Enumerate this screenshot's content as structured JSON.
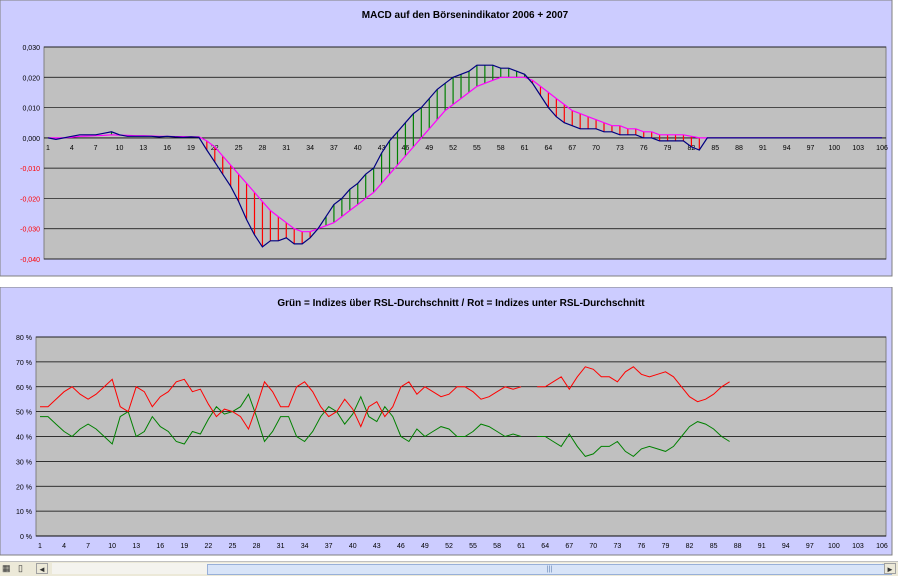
{
  "chart_data": [
    {
      "type": "line",
      "title": "MACD auf den Börsenindikator 2006 + 2007",
      "ylim": [
        -0.04,
        0.03
      ],
      "yticks": [
        "0,030",
        "0,020",
        "0,010",
        "0,000",
        "-0,010",
        "-0,020",
        "-0,030",
        "-0,040"
      ],
      "ytick_values": [
        0.03,
        0.02,
        0.01,
        0.0,
        -0.01,
        -0.02,
        -0.03,
        -0.04
      ],
      "xticks": [
        "1",
        "4",
        "7",
        "10",
        "13",
        "16",
        "19",
        "22",
        "25",
        "28",
        "31",
        "34",
        "37",
        "40",
        "43",
        "46",
        "49",
        "52",
        "55",
        "58",
        "61",
        "64",
        "67",
        "70",
        "73",
        "76",
        "79",
        "82",
        "85",
        "88",
        "91",
        "94",
        "97",
        "100",
        "103",
        "106"
      ],
      "x_count": 106,
      "grid": true,
      "colors": {
        "plot_bg": "#c0c0c0",
        "frame_bg": "#ccccff",
        "macd": "#000080",
        "signal": "#ff00ff",
        "bar_up": "#008000",
        "bar_down": "#ff0000",
        "tick_negative": "#ff0000"
      },
      "series": [
        {
          "values": [
            0,
            -0.0005,
            0,
            0.0005,
            0.001,
            0.001,
            0.001,
            0.0015,
            0.002,
            0.001,
            0.0005,
            0.0005,
            0.0005,
            0.0005,
            0.0003,
            0.0005,
            0.0003,
            0.0002,
            0.0003,
            0.0002,
            -0.004,
            -0.008,
            -0.012,
            -0.016,
            -0.021,
            -0.027,
            -0.032,
            -0.036,
            -0.034,
            -0.034,
            -0.033,
            -0.035,
            -0.035,
            -0.033,
            -0.03,
            -0.026,
            -0.022,
            -0.02,
            -0.017,
            -0.015,
            -0.012,
            -0.01,
            -0.005,
            -0.001,
            0.002,
            0.005,
            0.008,
            0.01,
            0.013,
            0.016,
            0.018,
            0.02,
            0.021,
            0.022,
            0.024,
            0.024,
            0.024,
            0.023,
            0.023,
            0.022,
            0.021,
            0.018,
            0.014,
            0.01,
            0.007,
            0.005,
            0.004,
            0.003,
            0.003,
            0.003,
            0.002,
            0.002,
            0.001,
            0.001,
            0.001,
            0.0,
            0.0,
            -0.001,
            -0.001,
            -0.001,
            -0.001,
            -0.003,
            -0.004,
            0,
            0,
            0,
            0,
            0,
            0,
            0,
            0,
            0,
            0,
            0,
            0,
            0,
            0,
            0,
            0,
            0,
            0,
            0,
            0,
            0,
            0,
            0
          ]
        },
        {
          "values": [
            0,
            0,
            0,
            0.0002,
            0.0005,
            0.0006,
            0.0007,
            0.0008,
            0.001,
            0.0009,
            0.0008,
            0.0007,
            0.0007,
            0.0006,
            0.0005,
            0.0005,
            0.0004,
            0.0004,
            0.0003,
            0.0003,
            -0.001,
            -0.003,
            -0.006,
            -0.009,
            -0.012,
            -0.015,
            -0.018,
            -0.021,
            -0.024,
            -0.026,
            -0.028,
            -0.03,
            -0.031,
            -0.031,
            -0.03,
            -0.029,
            -0.028,
            -0.026,
            -0.024,
            -0.022,
            -0.02,
            -0.018,
            -0.015,
            -0.012,
            -0.009,
            -0.006,
            -0.003,
            0.0,
            0.003,
            0.006,
            0.009,
            0.011,
            0.013,
            0.015,
            0.017,
            0.018,
            0.019,
            0.02,
            0.02,
            0.02,
            0.02,
            0.019,
            0.017,
            0.015,
            0.013,
            0.011,
            0.009,
            0.008,
            0.007,
            0.006,
            0.005,
            0.004,
            0.004,
            0.003,
            0.003,
            0.002,
            0.002,
            0.001,
            0.001,
            0.001,
            0.001,
            0.0005,
            0,
            0,
            0,
            0,
            0,
            0,
            0,
            0,
            0,
            0,
            0,
            0,
            0,
            0,
            0,
            0,
            0,
            0,
            0,
            0,
            0,
            0,
            0,
            0
          ]
        }
      ]
    },
    {
      "type": "line",
      "title": "Grün = Indizes über RSL-Durchschnitt / Rot = Indizes unter RSL-Durchschnitt",
      "ylim": [
        0,
        0.8
      ],
      "yticks": [
        "80 %",
        "70 %",
        "60 %",
        "50 %",
        "40 %",
        "30 %",
        "20 %",
        "10 %",
        "0 %"
      ],
      "ytick_values": [
        0.8,
        0.7,
        0.6,
        0.5,
        0.4,
        0.3,
        0.2,
        0.1,
        0.0
      ],
      "xticks": [
        "1",
        "4",
        "7",
        "10",
        "13",
        "16",
        "19",
        "22",
        "25",
        "28",
        "31",
        "34",
        "37",
        "40",
        "43",
        "46",
        "49",
        "52",
        "55",
        "58",
        "61",
        "64",
        "67",
        "70",
        "73",
        "76",
        "79",
        "82",
        "85",
        "88",
        "91",
        "94",
        "97",
        "100",
        "103",
        "106"
      ],
      "x_count": 106,
      "grid": true,
      "colors": {
        "plot_bg": "#c0c0c0",
        "frame_bg": "#ccccff",
        "green": "#008000",
        "red": "#ff0000"
      },
      "series": [
        {
          "values": [
            0.48,
            0.48,
            0.45,
            0.42,
            0.4,
            0.43,
            0.45,
            0.43,
            0.4,
            0.37,
            0.48,
            0.5,
            0.4,
            0.42,
            0.48,
            0.44,
            0.42,
            0.38,
            0.37,
            0.42,
            0.41,
            0.47,
            0.52,
            0.49,
            0.5,
            0.52,
            0.57,
            0.48,
            0.38,
            0.42,
            0.48,
            0.48,
            0.4,
            0.38,
            0.42,
            0.48,
            0.52,
            0.5,
            0.45,
            0.49,
            0.56,
            0.48,
            0.46,
            0.52,
            0.48,
            0.4,
            0.38,
            0.43,
            0.4,
            0.42,
            0.44,
            0.43,
            0.4,
            0.4,
            0.42,
            0.45,
            0.44,
            0.42,
            0.4,
            0.41,
            0.4,
            null,
            0.4,
            0.4,
            0.38,
            0.36,
            0.41,
            0.36,
            0.32,
            0.33,
            0.36,
            0.36,
            0.38,
            0.34,
            0.32,
            0.35,
            0.36,
            0.35,
            0.34,
            0.36,
            0.4,
            0.44,
            0.46,
            0.45,
            0.43,
            0.4,
            0.38
          ]
        },
        {
          "values": [
            0.52,
            0.52,
            0.55,
            0.58,
            0.6,
            0.57,
            0.55,
            0.57,
            0.6,
            0.63,
            0.52,
            0.5,
            0.6,
            0.58,
            0.52,
            0.56,
            0.58,
            0.62,
            0.63,
            0.58,
            0.59,
            0.53,
            0.48,
            0.51,
            0.5,
            0.48,
            0.43,
            0.52,
            0.62,
            0.58,
            0.52,
            0.52,
            0.6,
            0.62,
            0.58,
            0.52,
            0.48,
            0.5,
            0.55,
            0.51,
            0.44,
            0.52,
            0.54,
            0.48,
            0.52,
            0.6,
            0.62,
            0.57,
            0.6,
            0.58,
            0.56,
            0.57,
            0.6,
            0.6,
            0.58,
            0.55,
            0.56,
            0.58,
            0.6,
            0.59,
            0.6,
            null,
            0.6,
            0.6,
            0.62,
            0.64,
            0.59,
            0.64,
            0.68,
            0.67,
            0.64,
            0.64,
            0.62,
            0.66,
            0.68,
            0.65,
            0.64,
            0.65,
            0.66,
            0.64,
            0.6,
            0.56,
            0.54,
            0.55,
            0.57,
            0.6,
            0.62
          ]
        }
      ]
    }
  ],
  "statusbar": {
    "icon_a": "grid-icon",
    "icon_b": "book-icon",
    "left_arrow": "◄",
    "right_arrow": "►",
    "thumb_grip": "|||"
  }
}
